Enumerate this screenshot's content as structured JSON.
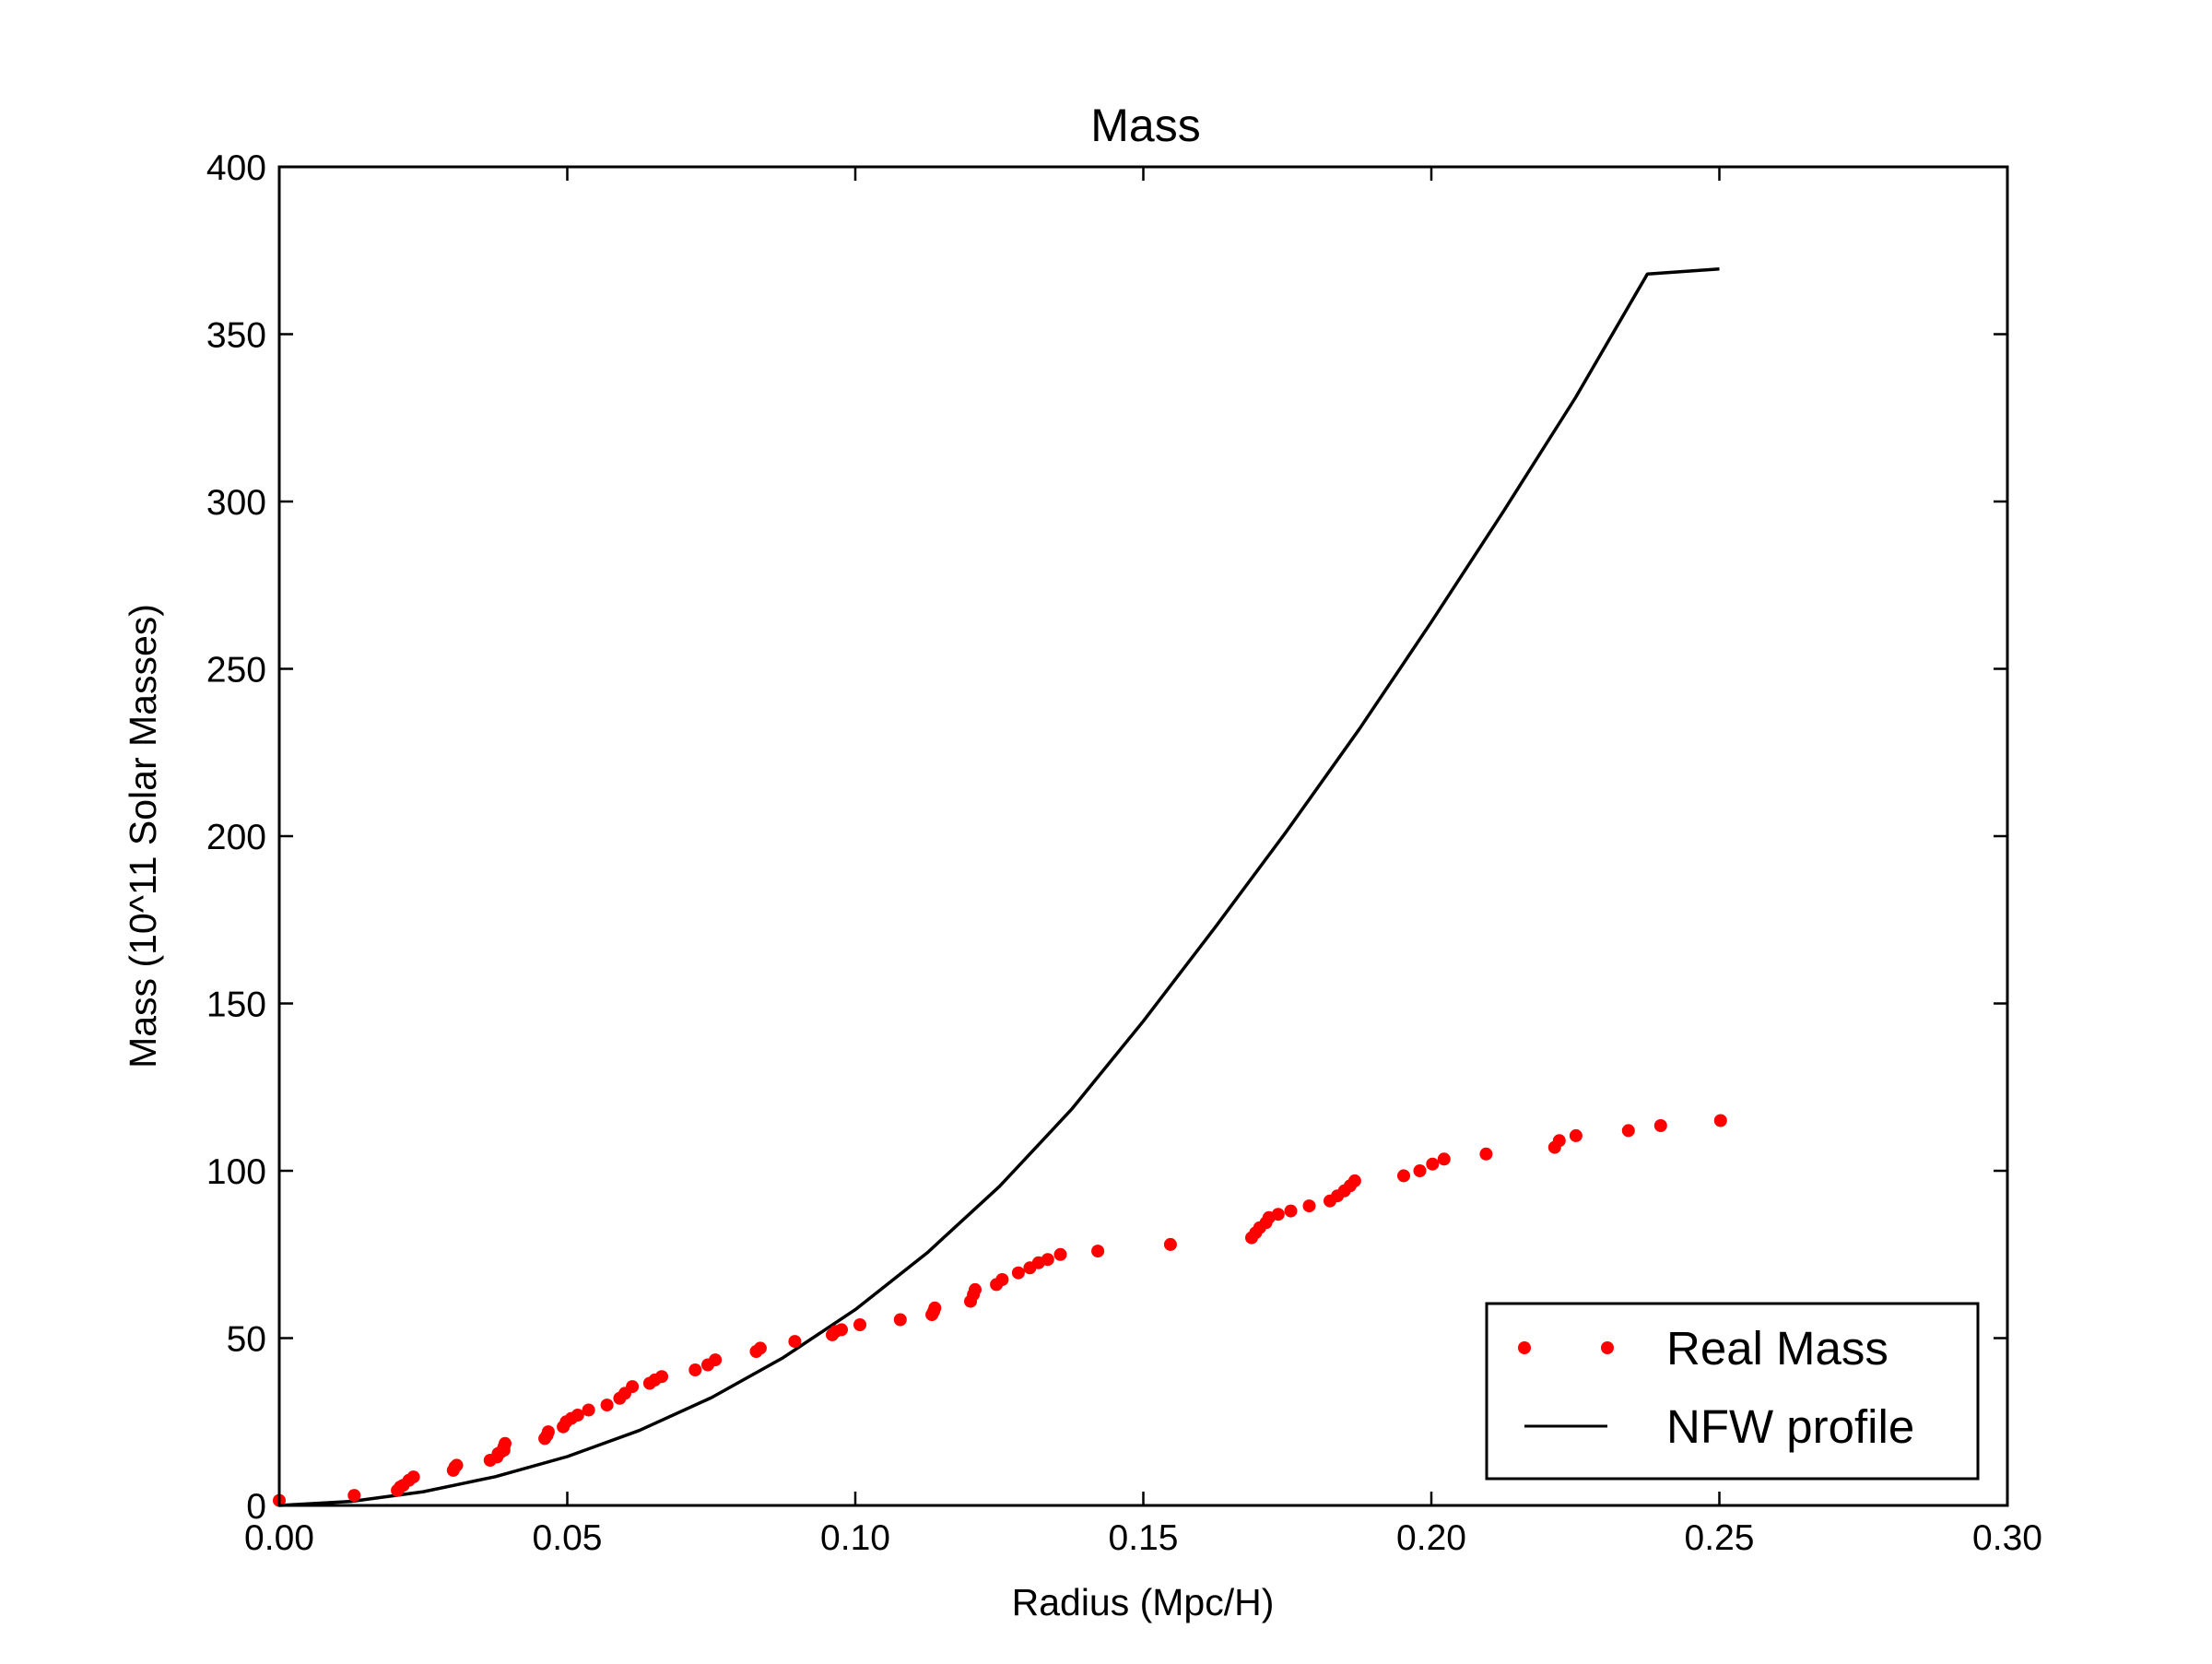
{
  "chart_data": {
    "type": "scatter",
    "title": "Mass",
    "xlabel": "Radius (Mpc/H)",
    "ylabel": "Mass (10^11 Solar Masses)",
    "xlim": [
      0,
      0.3
    ],
    "ylim": [
      0,
      400
    ],
    "xticks": [
      "0.00",
      "0.05",
      "0.10",
      "0.15",
      "0.20",
      "0.25",
      "0.30"
    ],
    "yticks": [
      "0",
      "50",
      "100",
      "150",
      "200",
      "250",
      "300",
      "350",
      "400"
    ],
    "grid": false,
    "legend_position": "lower-right",
    "series": [
      {
        "name": "Real Mass",
        "kind": "markers",
        "color": "#ff0000",
        "x": [
          0.0,
          0.013,
          0.0205,
          0.021,
          0.0215,
          0.0225,
          0.0233,
          0.0302,
          0.0305,
          0.0308,
          0.0366,
          0.0378,
          0.038,
          0.0385,
          0.039,
          0.039,
          0.0392,
          0.0461,
          0.0465,
          0.0467,
          0.0493,
          0.0498,
          0.0507,
          0.0518,
          0.0537,
          0.0569,
          0.0591,
          0.06,
          0.0613,
          0.0643,
          0.0652,
          0.0664,
          0.0722,
          0.0744,
          0.0757,
          0.0828,
          0.0835,
          0.0895,
          0.096,
          0.0966,
          0.0976,
          0.1008,
          0.1078,
          0.1133,
          0.1136,
          0.1138,
          0.12,
          0.1205,
          0.1208,
          0.1245,
          0.1255,
          0.1283,
          0.1303,
          0.1318,
          0.1334,
          0.1356,
          0.1421,
          0.1547,
          0.1688,
          0.1695,
          0.1702,
          0.1713,
          0.1718,
          0.1734,
          0.1756,
          0.1788,
          0.1824,
          0.1837,
          0.1849,
          0.1859,
          0.1867,
          0.1952,
          0.198,
          0.2002,
          0.2022,
          0.2095,
          0.2214,
          0.2222,
          0.2251,
          0.2342,
          0.2398,
          0.2502
        ],
        "y": [
          1.5,
          3,
          4.5,
          5.5,
          6,
          7.5,
          8.5,
          10.5,
          11.5,
          12,
          13.5,
          14.5,
          15.5,
          16,
          16.5,
          17.5,
          18.5,
          20,
          21,
          22,
          23.5,
          25,
          26,
          27,
          28.5,
          30,
          32,
          33.5,
          35.5,
          36.5,
          37.5,
          38.5,
          40.5,
          42,
          43.5,
          46,
          47,
          49,
          51,
          52,
          52.5,
          54,
          55.5,
          57,
          58,
          59,
          61,
          63,
          64.5,
          66,
          67.5,
          69.5,
          71,
          72.5,
          73.5,
          75,
          76,
          78,
          80,
          81.5,
          83,
          84.5,
          86,
          87,
          88,
          89.5,
          91,
          92.5,
          94,
          95.5,
          97,
          98.5,
          100,
          102,
          103.5,
          105,
          107,
          109,
          110.5,
          112,
          113.5,
          115
        ]
      },
      {
        "name": "NFW profile",
        "kind": "line",
        "color": "#000000",
        "x": [
          0.0,
          0.0125,
          0.025,
          0.0375,
          0.05,
          0.0625,
          0.075,
          0.0875,
          0.1,
          0.1125,
          0.125,
          0.1375,
          0.15,
          0.1625,
          0.175,
          0.1875,
          0.2,
          0.2125,
          0.225,
          0.2375,
          0.25
        ],
        "y": [
          0.0,
          1.2,
          4.1,
          8.6,
          14.6,
          22.4,
          32.2,
          44.2,
          58.5,
          75.5,
          95.3,
          118.3,
          144.7,
          172.8,
          201.8,
          232.0,
          264.0,
          297.0,
          331.0,
          368.0,
          369.5
        ]
      }
    ]
  }
}
